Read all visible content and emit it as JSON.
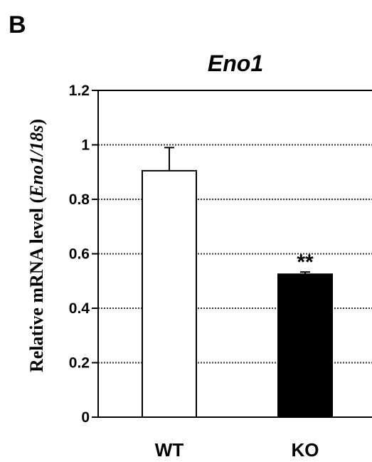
{
  "panel_label": "B",
  "chart_data": {
    "type": "bar",
    "title": "Eno1",
    "ylabel_parts": [
      {
        "text": "Relative mRNA level (",
        "italic": false
      },
      {
        "text": "Eno1/18s",
        "italic": true
      },
      {
        "text": ")",
        "italic": false
      }
    ],
    "categories": [
      "WT",
      "KO"
    ],
    "values": [
      0.905,
      0.525
    ],
    "errors": [
      0.085,
      0.008
    ],
    "bar_colors": [
      "#ffffff",
      "#000000"
    ],
    "significance": [
      "",
      "**"
    ],
    "ylim": [
      0,
      1.2
    ],
    "yticks": [
      0,
      0.2,
      0.4,
      0.6,
      0.8,
      1,
      1.2
    ],
    "ytick_labels": [
      "0",
      "0.2",
      "0.4",
      "0.6",
      "0.8",
      "1",
      "1.2"
    ],
    "grid": true
  }
}
